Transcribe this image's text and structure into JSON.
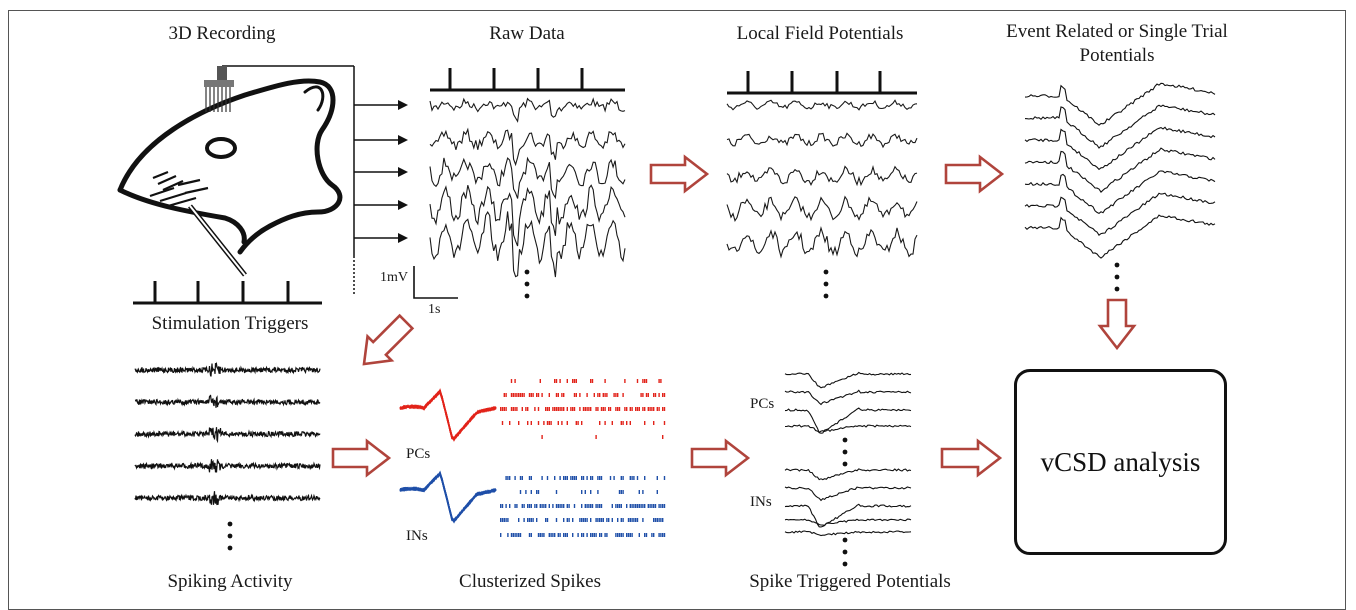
{
  "titles": {
    "recording": "3D Recording",
    "raw": "Raw Data",
    "lfp": "Local Field Potentials",
    "erp_line1": "Event Related  or Single Trial",
    "erp_line2": "Potentials",
    "stim": "Stimulation Triggers",
    "spiking": "Spiking Activity",
    "clusters": "Clusterized Spikes",
    "stp": "Spike Triggered Potentials"
  },
  "scale": {
    "voltage": "1mV",
    "time": "1s"
  },
  "cell_types": {
    "pyramidal": "PCs",
    "interneurons": "INs"
  },
  "analysis": {
    "label": "vCSD analysis"
  },
  "colors": {
    "arrow": "#b0443c",
    "pcs": "#e2231a",
    "ins": "#1f4fa8",
    "trace": "#1a1a1a"
  }
}
